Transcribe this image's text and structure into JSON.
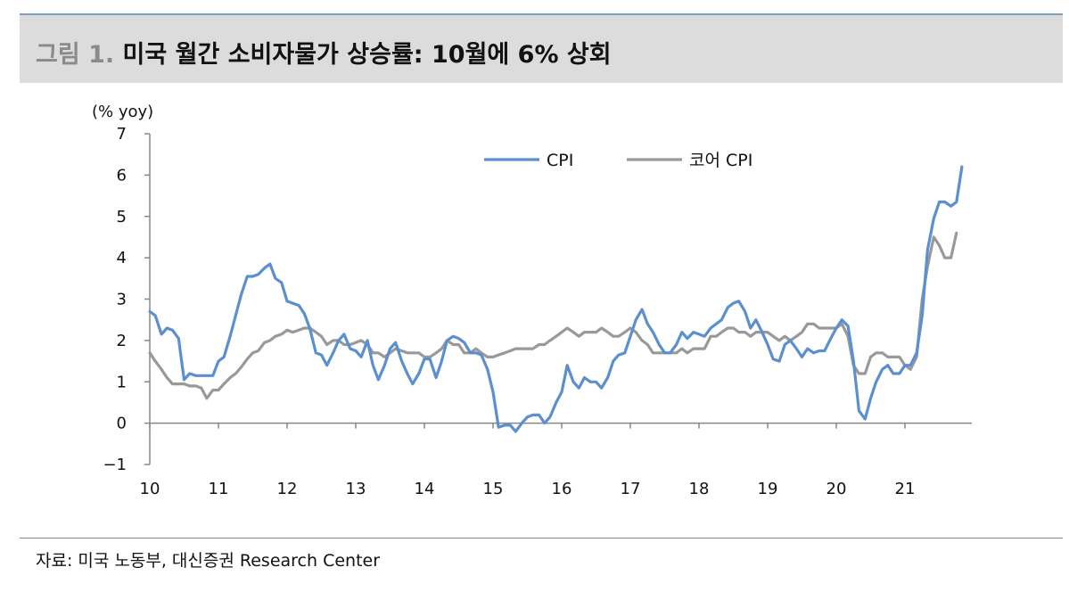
{
  "header": {
    "prefix": "그림 1.",
    "title": "미국 월간 소비자물가 상승률: 10월에 6% 상회"
  },
  "footer": {
    "source": "자료: 미국 노동부, 대신증권 Research Center"
  },
  "chart_data": {
    "type": "line",
    "ylabel": "(% yoy)",
    "ylim": [
      -1,
      7
    ],
    "yticks": [
      -1,
      0,
      1,
      2,
      3,
      4,
      5,
      6,
      7
    ],
    "xlim": [
      2010,
      2021.9
    ],
    "xticks": [
      {
        "value": 2010,
        "label": "10"
      },
      {
        "value": 2011,
        "label": "11"
      },
      {
        "value": 2012,
        "label": "12"
      },
      {
        "value": 2013,
        "label": "13"
      },
      {
        "value": 2014,
        "label": "14"
      },
      {
        "value": 2015,
        "label": "15"
      },
      {
        "value": 2016,
        "label": "16"
      },
      {
        "value": 2017,
        "label": "17"
      },
      {
        "value": 2018,
        "label": "18"
      },
      {
        "value": 2019,
        "label": "19"
      },
      {
        "value": 2020,
        "label": "20"
      },
      {
        "value": 2021,
        "label": "21"
      }
    ],
    "legend_position": "top-right",
    "grid": false,
    "series": [
      {
        "name": "CPI",
        "color": "#5b8fcf",
        "points": [
          [
            2010.0,
            2.7
          ],
          [
            2010.08,
            2.6
          ],
          [
            2010.17,
            2.15
          ],
          [
            2010.25,
            2.3
          ],
          [
            2010.33,
            2.25
          ],
          [
            2010.42,
            2.05
          ],
          [
            2010.5,
            1.05
          ],
          [
            2010.58,
            1.2
          ],
          [
            2010.67,
            1.15
          ],
          [
            2010.75,
            1.15
          ],
          [
            2010.83,
            1.15
          ],
          [
            2010.92,
            1.15
          ],
          [
            2011.0,
            1.5
          ],
          [
            2011.08,
            1.6
          ],
          [
            2011.17,
            2.1
          ],
          [
            2011.25,
            2.6
          ],
          [
            2011.33,
            3.1
          ],
          [
            2011.42,
            3.55
          ],
          [
            2011.5,
            3.55
          ],
          [
            2011.58,
            3.6
          ],
          [
            2011.67,
            3.75
          ],
          [
            2011.75,
            3.85
          ],
          [
            2011.83,
            3.5
          ],
          [
            2011.92,
            3.4
          ],
          [
            2012.0,
            2.95
          ],
          [
            2012.08,
            2.9
          ],
          [
            2012.17,
            2.85
          ],
          [
            2012.25,
            2.65
          ],
          [
            2012.33,
            2.3
          ],
          [
            2012.42,
            1.7
          ],
          [
            2012.5,
            1.65
          ],
          [
            2012.58,
            1.4
          ],
          [
            2012.67,
            1.7
          ],
          [
            2012.75,
            2.0
          ],
          [
            2012.83,
            2.15
          ],
          [
            2012.92,
            1.8
          ],
          [
            2013.0,
            1.75
          ],
          [
            2013.08,
            1.6
          ],
          [
            2013.17,
            2.0
          ],
          [
            2013.25,
            1.4
          ],
          [
            2013.33,
            1.05
          ],
          [
            2013.42,
            1.4
          ],
          [
            2013.5,
            1.8
          ],
          [
            2013.58,
            1.95
          ],
          [
            2013.67,
            1.5
          ],
          [
            2013.75,
            1.2
          ],
          [
            2013.83,
            0.95
          ],
          [
            2013.92,
            1.2
          ],
          [
            2014.0,
            1.55
          ],
          [
            2014.08,
            1.55
          ],
          [
            2014.17,
            1.1
          ],
          [
            2014.25,
            1.5
          ],
          [
            2014.33,
            2.0
          ],
          [
            2014.42,
            2.1
          ],
          [
            2014.5,
            2.05
          ],
          [
            2014.58,
            1.95
          ],
          [
            2014.67,
            1.7
          ],
          [
            2014.75,
            1.7
          ],
          [
            2014.83,
            1.65
          ],
          [
            2014.92,
            1.3
          ],
          [
            2015.0,
            0.75
          ],
          [
            2015.08,
            -0.1
          ],
          [
            2015.17,
            -0.05
          ],
          [
            2015.25,
            -0.05
          ],
          [
            2015.33,
            -0.2
          ],
          [
            2015.42,
            0.0
          ],
          [
            2015.5,
            0.15
          ],
          [
            2015.58,
            0.2
          ],
          [
            2015.67,
            0.2
          ],
          [
            2015.75,
            0.0
          ],
          [
            2015.83,
            0.15
          ],
          [
            2015.92,
            0.5
          ],
          [
            2016.0,
            0.75
          ],
          [
            2016.08,
            1.4
          ],
          [
            2016.17,
            1.0
          ],
          [
            2016.25,
            0.85
          ],
          [
            2016.33,
            1.1
          ],
          [
            2016.42,
            1.0
          ],
          [
            2016.5,
            1.0
          ],
          [
            2016.58,
            0.85
          ],
          [
            2016.67,
            1.1
          ],
          [
            2016.75,
            1.5
          ],
          [
            2016.83,
            1.65
          ],
          [
            2016.92,
            1.7
          ],
          [
            2017.0,
            2.1
          ],
          [
            2017.08,
            2.5
          ],
          [
            2017.17,
            2.75
          ],
          [
            2017.25,
            2.4
          ],
          [
            2017.33,
            2.2
          ],
          [
            2017.42,
            1.9
          ],
          [
            2017.5,
            1.7
          ],
          [
            2017.58,
            1.7
          ],
          [
            2017.67,
            1.9
          ],
          [
            2017.75,
            2.2
          ],
          [
            2017.83,
            2.05
          ],
          [
            2017.92,
            2.2
          ],
          [
            2018.0,
            2.15
          ],
          [
            2018.08,
            2.1
          ],
          [
            2018.17,
            2.3
          ],
          [
            2018.25,
            2.4
          ],
          [
            2018.33,
            2.5
          ],
          [
            2018.42,
            2.8
          ],
          [
            2018.5,
            2.9
          ],
          [
            2018.58,
            2.95
          ],
          [
            2018.67,
            2.7
          ],
          [
            2018.75,
            2.3
          ],
          [
            2018.83,
            2.5
          ],
          [
            2018.92,
            2.2
          ],
          [
            2019.0,
            1.9
          ],
          [
            2019.08,
            1.55
          ],
          [
            2019.17,
            1.5
          ],
          [
            2019.25,
            1.9
          ],
          [
            2019.33,
            2.0
          ],
          [
            2019.42,
            1.8
          ],
          [
            2019.5,
            1.6
          ],
          [
            2019.58,
            1.8
          ],
          [
            2019.67,
            1.7
          ],
          [
            2019.75,
            1.75
          ],
          [
            2019.83,
            1.75
          ],
          [
            2019.92,
            2.05
          ],
          [
            2020.0,
            2.3
          ],
          [
            2020.08,
            2.5
          ],
          [
            2020.17,
            2.35
          ],
          [
            2020.25,
            1.5
          ],
          [
            2020.33,
            0.3
          ],
          [
            2020.42,
            0.1
          ],
          [
            2020.5,
            0.6
          ],
          [
            2020.58,
            1.0
          ],
          [
            2020.67,
            1.3
          ],
          [
            2020.75,
            1.4
          ],
          [
            2020.83,
            1.2
          ],
          [
            2020.92,
            1.2
          ],
          [
            2021.0,
            1.4
          ],
          [
            2021.08,
            1.4
          ],
          [
            2021.17,
            1.7
          ],
          [
            2021.25,
            2.6
          ],
          [
            2021.33,
            4.2
          ],
          [
            2021.42,
            4.95
          ],
          [
            2021.5,
            5.35
          ],
          [
            2021.58,
            5.35
          ],
          [
            2021.67,
            5.25
          ],
          [
            2021.75,
            5.35
          ],
          [
            2021.83,
            6.2
          ]
        ]
      },
      {
        "name": "코어 CPI",
        "color": "#999999",
        "points": [
          [
            2010.0,
            1.7
          ],
          [
            2010.08,
            1.5
          ],
          [
            2010.17,
            1.3
          ],
          [
            2010.25,
            1.1
          ],
          [
            2010.33,
            0.95
          ],
          [
            2010.42,
            0.95
          ],
          [
            2010.5,
            0.95
          ],
          [
            2010.58,
            0.9
          ],
          [
            2010.67,
            0.9
          ],
          [
            2010.75,
            0.85
          ],
          [
            2010.83,
            0.6
          ],
          [
            2010.92,
            0.8
          ],
          [
            2011.0,
            0.8
          ],
          [
            2011.08,
            0.95
          ],
          [
            2011.17,
            1.1
          ],
          [
            2011.25,
            1.2
          ],
          [
            2011.33,
            1.35
          ],
          [
            2011.42,
            1.55
          ],
          [
            2011.5,
            1.7
          ],
          [
            2011.58,
            1.75
          ],
          [
            2011.67,
            1.95
          ],
          [
            2011.75,
            2.0
          ],
          [
            2011.83,
            2.1
          ],
          [
            2011.92,
            2.15
          ],
          [
            2012.0,
            2.25
          ],
          [
            2012.08,
            2.2
          ],
          [
            2012.17,
            2.25
          ],
          [
            2012.25,
            2.3
          ],
          [
            2012.33,
            2.3
          ],
          [
            2012.42,
            2.2
          ],
          [
            2012.5,
            2.1
          ],
          [
            2012.58,
            1.9
          ],
          [
            2012.67,
            2.0
          ],
          [
            2012.75,
            2.0
          ],
          [
            2012.83,
            1.9
          ],
          [
            2012.92,
            1.9
          ],
          [
            2013.0,
            1.95
          ],
          [
            2013.08,
            2.0
          ],
          [
            2013.17,
            1.9
          ],
          [
            2013.25,
            1.7
          ],
          [
            2013.33,
            1.7
          ],
          [
            2013.42,
            1.6
          ],
          [
            2013.5,
            1.7
          ],
          [
            2013.58,
            1.8
          ],
          [
            2013.67,
            1.75
          ],
          [
            2013.75,
            1.7
          ],
          [
            2013.83,
            1.7
          ],
          [
            2013.92,
            1.7
          ],
          [
            2014.0,
            1.6
          ],
          [
            2014.08,
            1.6
          ],
          [
            2014.17,
            1.7
          ],
          [
            2014.25,
            1.8
          ],
          [
            2014.33,
            2.0
          ],
          [
            2014.42,
            1.9
          ],
          [
            2014.5,
            1.9
          ],
          [
            2014.58,
            1.7
          ],
          [
            2014.67,
            1.7
          ],
          [
            2014.75,
            1.8
          ],
          [
            2014.83,
            1.7
          ],
          [
            2014.92,
            1.6
          ],
          [
            2015.0,
            1.6
          ],
          [
            2015.08,
            1.65
          ],
          [
            2015.17,
            1.7
          ],
          [
            2015.25,
            1.75
          ],
          [
            2015.33,
            1.8
          ],
          [
            2015.42,
            1.8
          ],
          [
            2015.5,
            1.8
          ],
          [
            2015.58,
            1.8
          ],
          [
            2015.67,
            1.9
          ],
          [
            2015.75,
            1.9
          ],
          [
            2015.83,
            2.0
          ],
          [
            2015.92,
            2.1
          ],
          [
            2016.0,
            2.2
          ],
          [
            2016.08,
            2.3
          ],
          [
            2016.17,
            2.2
          ],
          [
            2016.25,
            2.1
          ],
          [
            2016.33,
            2.2
          ],
          [
            2016.42,
            2.2
          ],
          [
            2016.5,
            2.2
          ],
          [
            2016.58,
            2.3
          ],
          [
            2016.67,
            2.2
          ],
          [
            2016.75,
            2.1
          ],
          [
            2016.83,
            2.1
          ],
          [
            2016.92,
            2.2
          ],
          [
            2017.0,
            2.3
          ],
          [
            2017.08,
            2.2
          ],
          [
            2017.17,
            2.0
          ],
          [
            2017.25,
            1.9
          ],
          [
            2017.33,
            1.7
          ],
          [
            2017.42,
            1.7
          ],
          [
            2017.5,
            1.7
          ],
          [
            2017.58,
            1.7
          ],
          [
            2017.67,
            1.7
          ],
          [
            2017.75,
            1.8
          ],
          [
            2017.83,
            1.7
          ],
          [
            2017.92,
            1.8
          ],
          [
            2018.0,
            1.8
          ],
          [
            2018.08,
            1.8
          ],
          [
            2018.17,
            2.1
          ],
          [
            2018.25,
            2.1
          ],
          [
            2018.33,
            2.2
          ],
          [
            2018.42,
            2.3
          ],
          [
            2018.5,
            2.3
          ],
          [
            2018.58,
            2.2
          ],
          [
            2018.67,
            2.2
          ],
          [
            2018.75,
            2.1
          ],
          [
            2018.83,
            2.2
          ],
          [
            2018.92,
            2.2
          ],
          [
            2019.0,
            2.2
          ],
          [
            2019.08,
            2.1
          ],
          [
            2019.17,
            2.0
          ],
          [
            2019.25,
            2.1
          ],
          [
            2019.33,
            2.0
          ],
          [
            2019.42,
            2.1
          ],
          [
            2019.5,
            2.2
          ],
          [
            2019.58,
            2.4
          ],
          [
            2019.67,
            2.4
          ],
          [
            2019.75,
            2.3
          ],
          [
            2019.83,
            2.3
          ],
          [
            2019.92,
            2.3
          ],
          [
            2020.0,
            2.3
          ],
          [
            2020.08,
            2.4
          ],
          [
            2020.17,
            2.1
          ],
          [
            2020.25,
            1.4
          ],
          [
            2020.33,
            1.2
          ],
          [
            2020.42,
            1.2
          ],
          [
            2020.5,
            1.6
          ],
          [
            2020.58,
            1.7
          ],
          [
            2020.67,
            1.7
          ],
          [
            2020.75,
            1.6
          ],
          [
            2020.83,
            1.6
          ],
          [
            2020.92,
            1.6
          ],
          [
            2021.0,
            1.4
          ],
          [
            2021.08,
            1.3
          ],
          [
            2021.17,
            1.6
          ],
          [
            2021.25,
            3.0
          ],
          [
            2021.33,
            3.8
          ],
          [
            2021.42,
            4.5
          ],
          [
            2021.5,
            4.3
          ],
          [
            2021.58,
            4.0
          ],
          [
            2021.67,
            4.0
          ],
          [
            2021.75,
            4.6
          ]
        ]
      }
    ]
  }
}
